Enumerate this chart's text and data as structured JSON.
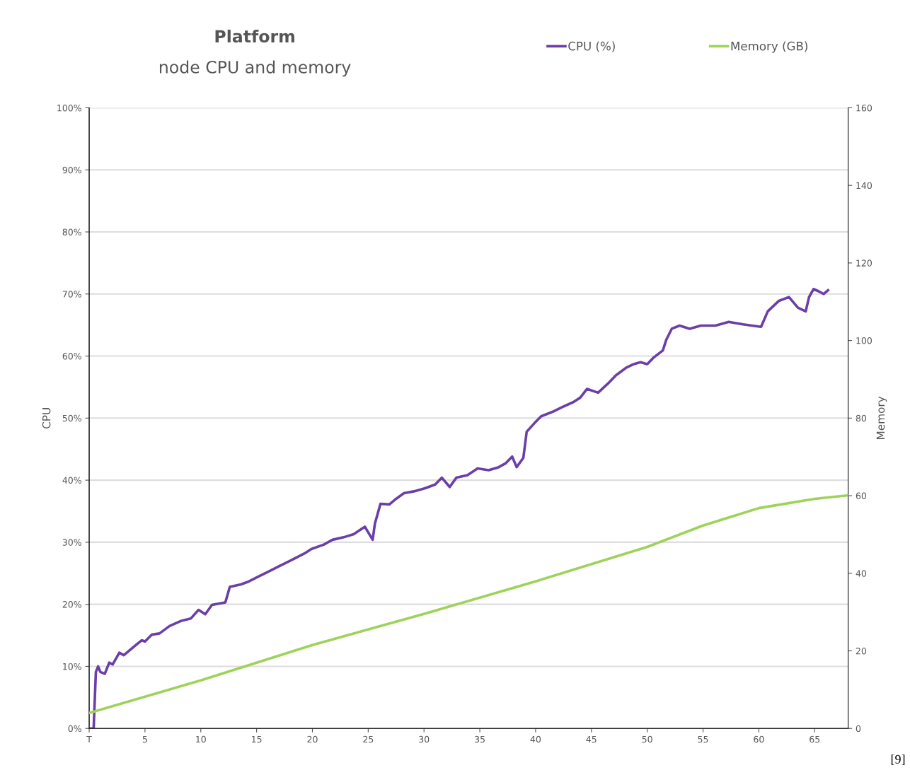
{
  "chart_data": {
    "type": "line",
    "title": "Platform",
    "subtitle": "node CPU and memory",
    "ylabel": "CPU",
    "y2label": "Memory",
    "annotations": [
      "[9]"
    ],
    "xlim": [
      0,
      68
    ],
    "xticks": [
      {
        "value": 0,
        "label": "T"
      },
      5,
      10,
      15,
      20,
      25,
      30,
      35,
      40,
      45,
      50,
      55,
      60,
      65
    ],
    "ylim": [
      0,
      100
    ],
    "yticks": [
      {
        "value": 0,
        "label": "0%"
      },
      {
        "value": 10,
        "label": "10%"
      },
      {
        "value": 20,
        "label": "20%"
      },
      {
        "value": 30,
        "label": "30%"
      },
      {
        "value": 40,
        "label": "40%"
      },
      {
        "value": 50,
        "label": "50%"
      },
      {
        "value": 60,
        "label": "60%"
      },
      {
        "value": 70,
        "label": "70%"
      },
      {
        "value": 80,
        "label": "80%"
      },
      {
        "value": 90,
        "label": "90%"
      },
      {
        "value": 100,
        "label": "100%"
      }
    ],
    "y2lim": [
      0,
      160
    ],
    "y2ticks": [
      0,
      20,
      40,
      60,
      80,
      100,
      120,
      140,
      160
    ],
    "grid": "y",
    "legend": "top right",
    "marker": "none",
    "line_style": "solid",
    "series": [
      {
        "name": "CPU (%)",
        "color": "#6a3fa8",
        "x": [
          0,
          0.4,
          0.6,
          0.8,
          1.0,
          1.4,
          1.8,
          2.1,
          2.7,
          3.1,
          4.1,
          4.7,
          5.0,
          5.6,
          6.3,
          7.2,
          8.2,
          9.1,
          9.8,
          10.4,
          11.0,
          12.2,
          12.6,
          13.6,
          14.2,
          15.2,
          16.1,
          17.1,
          18.0,
          19.3,
          19.9,
          21.0,
          21.8,
          22.8,
          23.7,
          24.7,
          25.4,
          25.6,
          26.1,
          26.9,
          27.5,
          28.2,
          29.1,
          30.1,
          31.0,
          31.6,
          32.3,
          32.9,
          33.9,
          34.8,
          35.8,
          36.7,
          37.3,
          37.9,
          38.3,
          38.9,
          39.2,
          39.9,
          40.5,
          41.5,
          42.4,
          43.4,
          44.0,
          44.6,
          45.6,
          46.5,
          47.2,
          48.1,
          48.8,
          49.4,
          50.0,
          50.6,
          51.4,
          51.7,
          52.2,
          52.9,
          53.8,
          54.8,
          56.1,
          57.3,
          58.6,
          60.2,
          60.8,
          61.8,
          62.7,
          63.5,
          64.2,
          64.5,
          64.9,
          65.4,
          65.8,
          66.2
        ],
        "values": [
          0,
          0,
          9.1,
          10.0,
          9.1,
          8.8,
          10.6,
          10.3,
          12.2,
          11.8,
          13.3,
          14.2,
          14.0,
          15.1,
          15.3,
          16.5,
          17.3,
          17.7,
          19.1,
          18.4,
          19.9,
          20.3,
          22.8,
          23.2,
          23.6,
          24.5,
          25.3,
          26.2,
          27.0,
          28.2,
          28.9,
          29.6,
          30.4,
          30.8,
          31.3,
          32.5,
          30.4,
          33.0,
          36.2,
          36.1,
          37.0,
          37.9,
          38.2,
          38.7,
          39.3,
          40.4,
          38.9,
          40.4,
          40.8,
          41.9,
          41.6,
          42.1,
          42.7,
          43.8,
          42.1,
          43.6,
          47.8,
          49.2,
          50.3,
          51.0,
          51.8,
          52.6,
          53.3,
          54.7,
          54.1,
          55.6,
          56.9,
          58.1,
          58.7,
          59.0,
          58.7,
          59.8,
          60.9,
          62.6,
          64.4,
          64.9,
          64.4,
          64.9,
          64.9,
          65.5,
          65.1,
          64.7,
          67.2,
          68.9,
          69.5,
          67.8,
          67.2,
          69.5,
          70.8,
          70.4,
          70.0,
          70.6
        ]
      },
      {
        "name": "Memory (GB)",
        "color": "#9dd35a",
        "axis": "y2",
        "x": [
          0,
          10,
          20,
          30,
          40,
          50,
          55,
          60,
          65,
          68
        ],
        "values": [
          4.0,
          12.4,
          21.5,
          29.5,
          37.9,
          46.8,
          52.3,
          56.8,
          59.2,
          60.1
        ]
      }
    ]
  }
}
